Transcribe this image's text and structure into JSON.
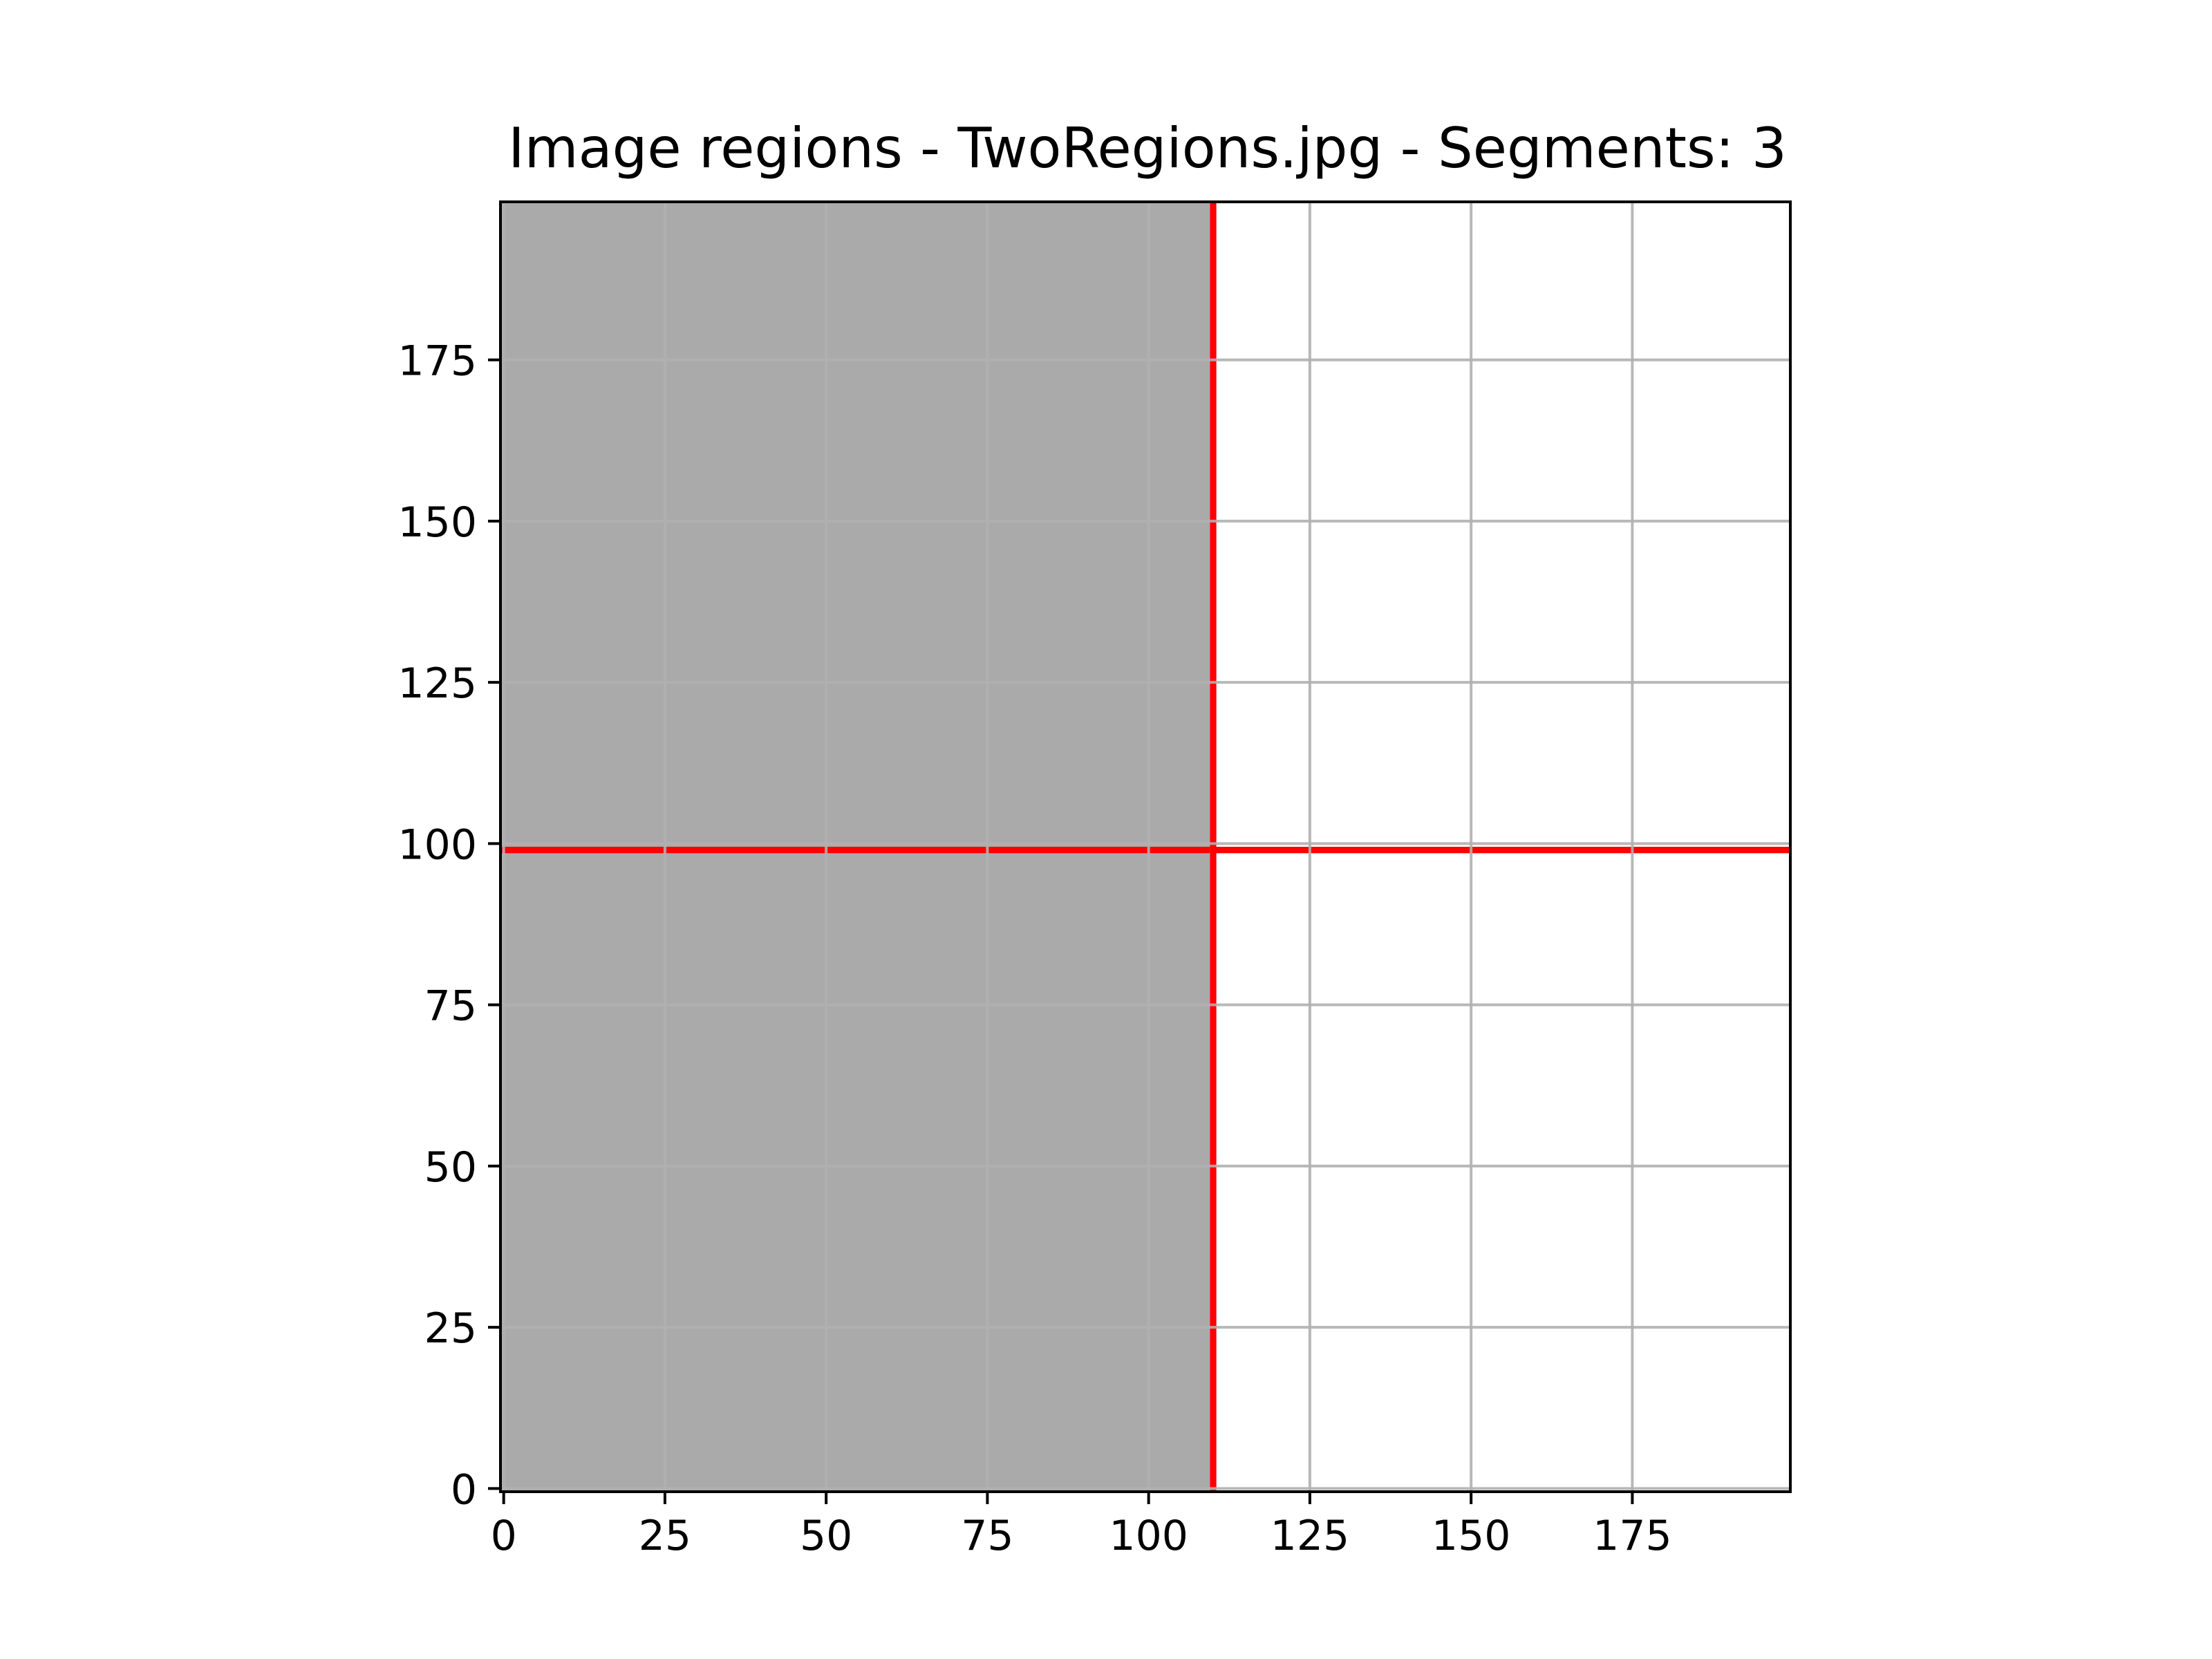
{
  "chart_data": {
    "type": "heatmap",
    "title": "Image regions - TwoRegions.jpg - Segments: 3",
    "xlabel": "",
    "ylabel": "",
    "xlim": [
      -0.5,
      199.5
    ],
    "ylim": [
      199.5,
      -0.5
    ],
    "y_axis_inverted": true,
    "grid": true,
    "x_ticks": [
      0,
      25,
      50,
      75,
      100,
      125,
      150,
      175
    ],
    "y_ticks": [
      0,
      25,
      50,
      75,
      100,
      125,
      150,
      175
    ],
    "x_tick_labels": [
      "0",
      "25",
      "50",
      "75",
      "100",
      "125",
      "150",
      "175"
    ],
    "y_tick_labels": [
      "0",
      "25",
      "50",
      "75",
      "100",
      "125",
      "150",
      "175"
    ],
    "regions": [
      {
        "x_range": [
          0,
          109
        ],
        "y_range": [
          0,
          199
        ],
        "color": "#aaaaaa"
      },
      {
        "x_range": [
          110,
          199
        ],
        "y_range": [
          0,
          199
        ],
        "color": "#ffffff"
      }
    ],
    "boundaries": [
      {
        "orientation": "vertical",
        "x": 110,
        "y_range": [
          0,
          199
        ],
        "color": "#ff0000"
      },
      {
        "orientation": "horizontal",
        "y": 99,
        "x_range": [
          0,
          109
        ],
        "color": "#ff0000"
      },
      {
        "orientation": "horizontal",
        "y": 99,
        "x_range": [
          110,
          199
        ],
        "color": "#ff0000"
      }
    ],
    "colors": {
      "grid": "#b0b0b0",
      "boundary": "#ff0000",
      "axes": "#000000"
    }
  }
}
